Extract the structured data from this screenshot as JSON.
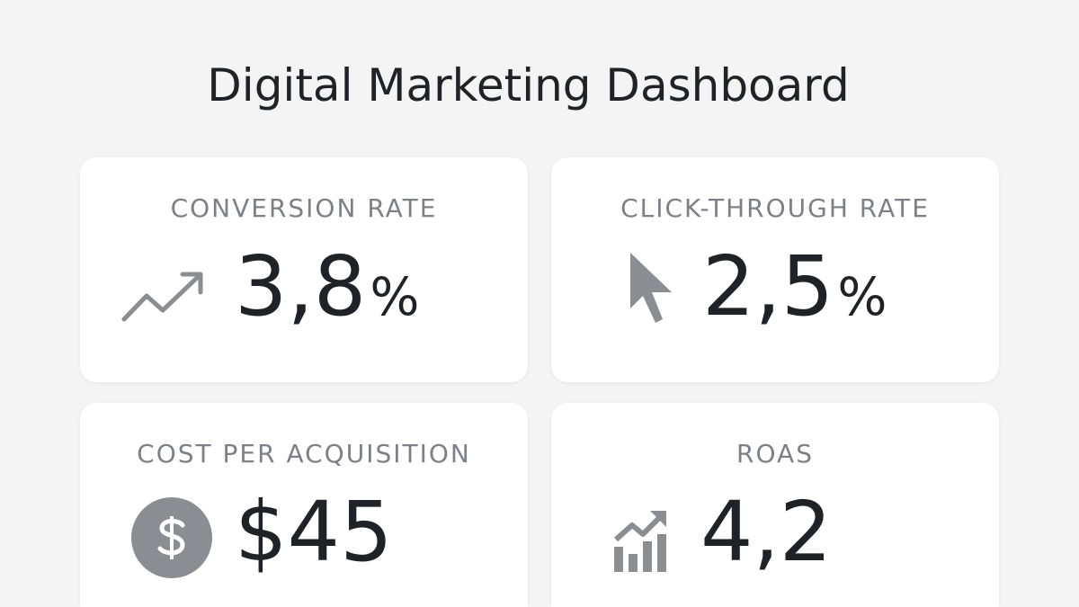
{
  "header": {
    "title": "Digital Marketing Dashboard"
  },
  "cards": [
    {
      "label": "CONVERSION RATE",
      "value": "3,8",
      "unit": "%"
    },
    {
      "label": "CLICK-THROUGH RATE",
      "value": "2,5",
      "unit": "%"
    },
    {
      "label": "COST PER ACQUISITION",
      "value": "$45"
    },
    {
      "label": "ROAS",
      "value": "4,2"
    }
  ]
}
